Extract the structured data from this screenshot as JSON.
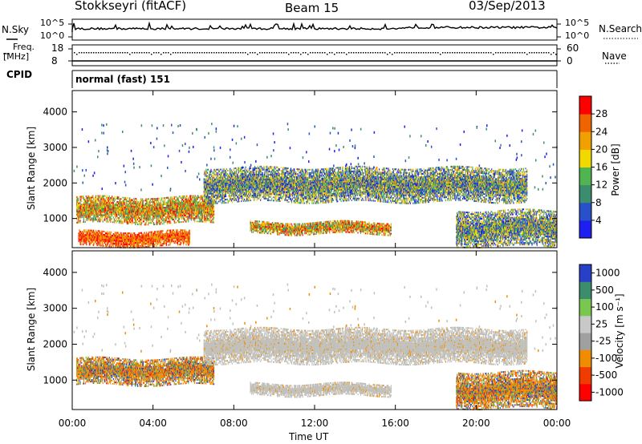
{
  "header": {
    "title": "Stokkseyri (fitACF)",
    "beam": "Beam 15",
    "date": "03/Sep/2013"
  },
  "top_panels": {
    "nsky_label": "N.Sky",
    "nsky_ticks": [
      "10^5",
      "10^0"
    ],
    "nsearch_label": "N.Search",
    "nsearch_ticks": [
      "10^5",
      "10^0"
    ],
    "freq_label_line1": "Freq.",
    "freq_label_line2": "[MHz]",
    "freq_ticks": [
      "18",
      "8"
    ],
    "nave_label": "Nave",
    "nave_ticks": [
      "60",
      "0"
    ],
    "cpid_label": "CPID",
    "cpid_value": "normal (fast) 151"
  },
  "colors": {
    "power_scale": [
      "#1e1ef0",
      "#2850c8",
      "#3c8c6e",
      "#50b450",
      "#f0d800",
      "#f0a000",
      "#f06400",
      "#ff0000"
    ],
    "velocity_scale": [
      "#ff0000",
      "#f03c00",
      "#f08c00",
      "#a0a0a0",
      "#c8c8c8",
      "#78c850",
      "#3c8c6e",
      "#2840c8"
    ],
    "ground_scatter": "#c0bfb8"
  },
  "chart_data": [
    {
      "type": "heatmap",
      "name": "power",
      "xlabel": "",
      "ylabel": "Slant Range [km]",
      "xlim": [
        0,
        24
      ],
      "ylim": [
        180,
        4600
      ],
      "y_ticks": [
        1000,
        2000,
        3000,
        4000
      ],
      "colorbar": {
        "label": "Power [dB]",
        "ticks": [
          "4",
          "8",
          "12",
          "16",
          "20",
          "24",
          "28"
        ],
        "range": [
          0,
          32
        ]
      },
      "echo_bands": [
        {
          "t0": 0.2,
          "t1": 7.0,
          "r_lo": 850,
          "r_hi": 1600,
          "level": "mixed-high"
        },
        {
          "t0": 0.3,
          "t1": 5.8,
          "r_lo": 200,
          "r_hi": 650,
          "level": "high"
        },
        {
          "t0": 6.5,
          "t1": 22.5,
          "r_lo": 1450,
          "r_hi": 2400,
          "level": "mixed"
        },
        {
          "t0": 8.8,
          "t1": 15.8,
          "r_lo": 550,
          "r_hi": 900,
          "level": "mixed-high"
        },
        {
          "t0": 19.0,
          "t1": 24.0,
          "r_lo": 200,
          "r_hi": 1200,
          "level": "mixed"
        }
      ]
    },
    {
      "type": "heatmap",
      "name": "velocity",
      "xlabel": "Time UT",
      "ylabel": "Slant Range [km]",
      "xlim": [
        0,
        24
      ],
      "ylim": [
        180,
        4600
      ],
      "x_ticks": [
        "00:00",
        "04:00",
        "08:00",
        "12:00",
        "16:00",
        "20:00",
        "00:00"
      ],
      "x_tick_values": [
        0,
        4,
        8,
        12,
        16,
        20,
        24
      ],
      "y_ticks": [
        1000,
        2000,
        3000,
        4000
      ],
      "colorbar": {
        "label": "Velocity [m s⁻¹]",
        "ticks": [
          "1000",
          "500",
          "100",
          "25",
          "-25",
          "-100",
          "-500",
          "-1000"
        ]
      },
      "echo_bands": [
        {
          "t0": 0.2,
          "t1": 7.0,
          "r_lo": 850,
          "r_hi": 1600,
          "level": "orange-blue"
        },
        {
          "t0": 6.5,
          "t1": 22.5,
          "r_lo": 1450,
          "r_hi": 2400,
          "level": "ground-scatter"
        },
        {
          "t0": 8.8,
          "t1": 15.8,
          "r_lo": 550,
          "r_hi": 900,
          "level": "ground-scatter"
        },
        {
          "t0": 19.0,
          "t1": 24.0,
          "r_lo": 200,
          "r_hi": 1200,
          "level": "orange-blue"
        }
      ]
    }
  ]
}
